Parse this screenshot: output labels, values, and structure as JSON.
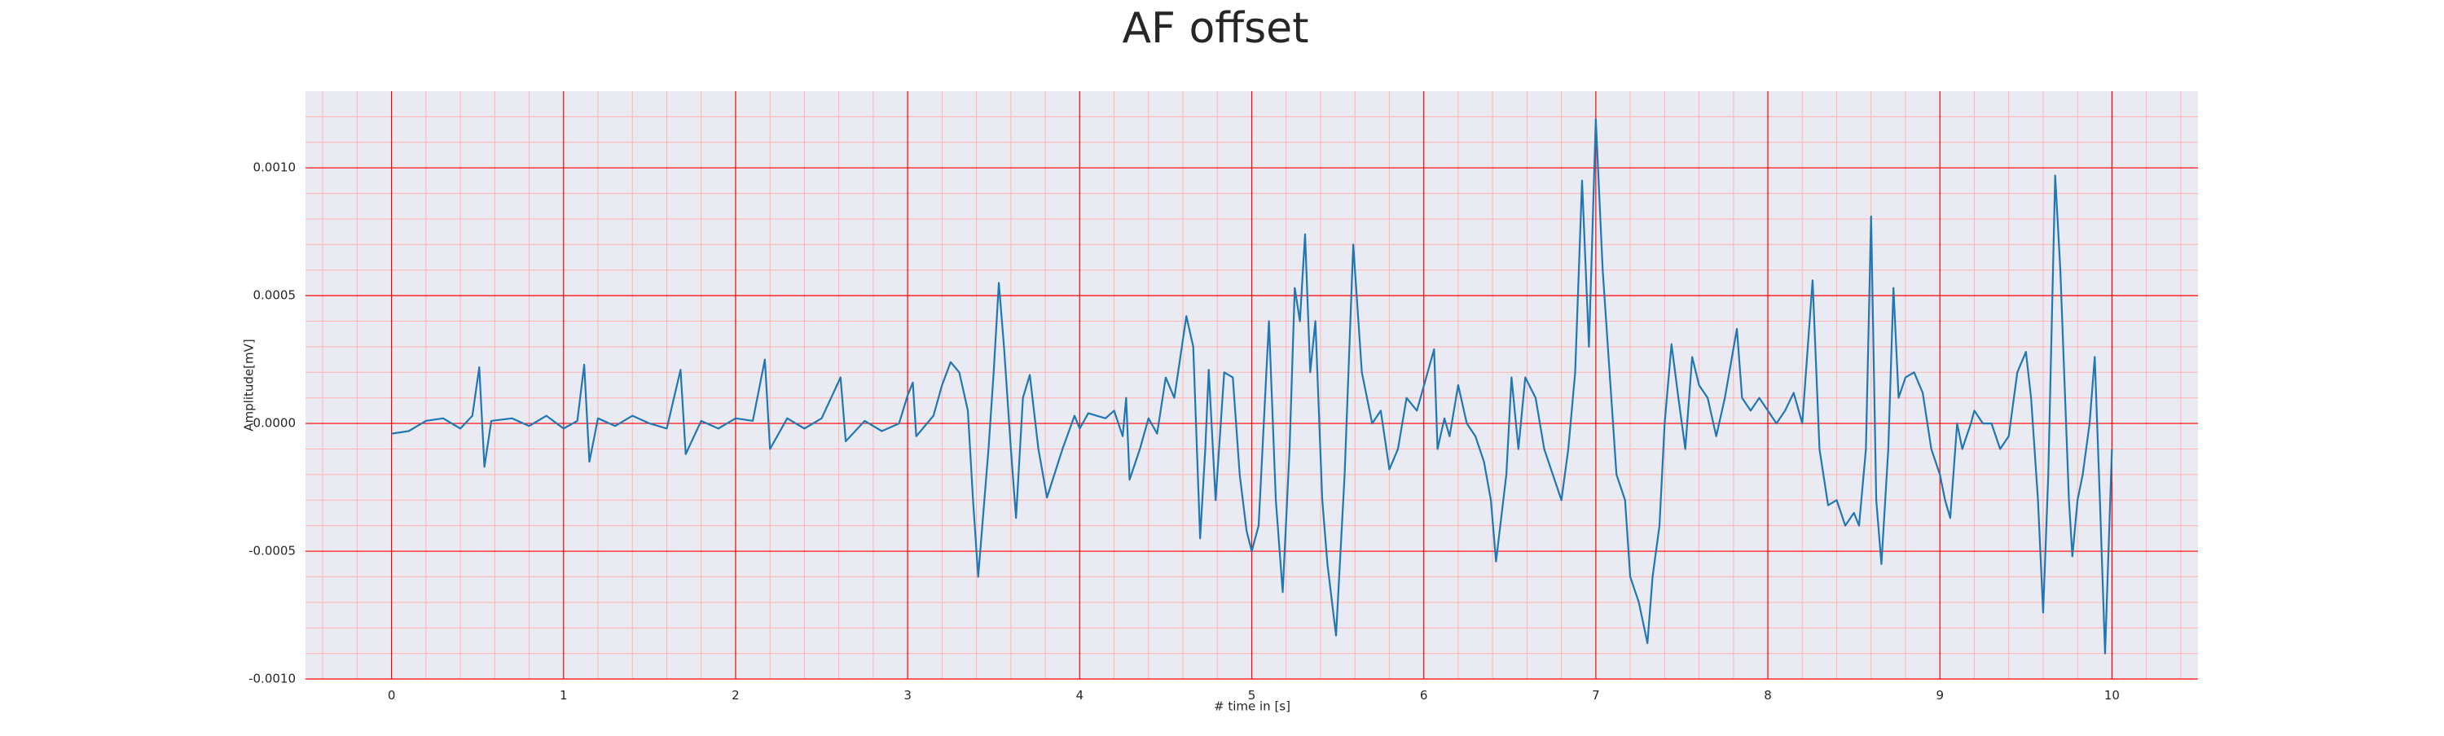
{
  "chart_data": {
    "type": "line",
    "title": "AF offset",
    "xlabel": "# time in [s]",
    "ylabel": "Amplitude[mV]",
    "x": [
      0,
      0.1,
      0.2,
      0.3,
      0.4,
      0.47,
      0.51,
      0.54,
      0.58,
      0.7,
      0.8,
      0.9,
      1.0,
      1.08,
      1.12,
      1.15,
      1.2,
      1.3,
      1.4,
      1.5,
      1.6,
      1.68,
      1.71,
      1.8,
      1.9,
      2.0,
      2.1,
      2.17,
      2.2,
      2.3,
      2.4,
      2.5,
      2.61,
      2.64,
      2.75,
      2.85,
      2.95,
      3.0,
      3.03,
      3.05,
      3.15,
      3.2,
      3.25,
      3.3,
      3.35,
      3.38,
      3.41,
      3.47,
      3.5,
      3.53,
      3.56,
      3.6,
      3.63,
      3.67,
      3.71,
      3.76,
      3.81,
      3.9,
      3.97,
      4.0,
      4.05,
      4.15,
      4.2,
      4.25,
      4.27,
      4.29,
      4.35,
      4.4,
      4.45,
      4.5,
      4.55,
      4.62,
      4.66,
      4.7,
      4.73,
      4.75,
      4.79,
      4.84,
      4.89,
      4.93,
      4.97,
      5.0,
      5.04,
      5.1,
      5.14,
      5.18,
      5.22,
      5.25,
      5.28,
      5.31,
      5.34,
      5.37,
      5.41,
      5.44,
      5.49,
      5.54,
      5.59,
      5.64,
      5.7,
      5.75,
      5.8,
      5.85,
      5.9,
      5.96,
      6.06,
      6.08,
      6.12,
      6.15,
      6.2,
      6.25,
      6.3,
      6.35,
      6.39,
      6.42,
      6.48,
      6.51,
      6.55,
      6.59,
      6.65,
      6.7,
      6.75,
      6.8,
      6.84,
      6.88,
      6.92,
      6.96,
      7.0,
      7.04,
      7.08,
      7.12,
      7.17,
      7.2,
      7.25,
      7.3,
      7.33,
      7.37,
      7.4,
      7.44,
      7.48,
      7.52,
      7.56,
      7.6,
      7.65,
      7.7,
      7.75,
      7.82,
      7.85,
      7.9,
      7.95,
      8.05,
      8.1,
      8.15,
      8.2,
      8.26,
      8.3,
      8.35,
      8.4,
      8.45,
      8.5,
      8.53,
      8.57,
      8.6,
      8.63,
      8.66,
      8.7,
      8.73,
      8.76,
      8.8,
      8.85,
      8.9,
      8.95,
      9.0,
      9.03,
      9.06,
      9.1,
      9.13,
      9.18,
      9.2,
      9.25,
      9.3,
      9.35,
      9.4,
      9.45,
      9.5,
      9.53,
      9.57,
      9.6,
      9.63,
      9.67,
      9.7,
      9.75,
      9.77,
      9.8,
      9.83,
      9.87,
      9.9,
      9.93,
      9.96,
      10.0
    ],
    "series": [
      {
        "name": "AF offset",
        "color": "#1f77b4",
        "values": [
          -4e-05,
          -3e-05,
          1e-05,
          2e-05,
          -2e-05,
          3e-05,
          0.00022,
          -0.00017,
          1e-05,
          2e-05,
          -1e-05,
          3e-05,
          -2e-05,
          1e-05,
          0.00023,
          -0.00015,
          2e-05,
          -1e-05,
          3e-05,
          0.0,
          -2e-05,
          0.00021,
          -0.00012,
          1e-05,
          -2e-05,
          2e-05,
          1e-05,
          0.00025,
          -0.0001,
          2e-05,
          -2e-05,
          2e-05,
          0.00018,
          -7e-05,
          1e-05,
          -3e-05,
          0.0,
          0.00011,
          0.00016,
          -5e-05,
          3e-05,
          0.00015,
          0.00024,
          0.0002,
          5e-05,
          -0.0003,
          -0.0006,
          -0.0001,
          0.0002,
          0.00055,
          0.0003,
          -0.0001,
          -0.00037,
          0.0001,
          0.00019,
          -0.0001,
          -0.00029,
          -0.0001,
          3e-05,
          -2e-05,
          4e-05,
          2e-05,
          5e-05,
          -5e-05,
          0.0001,
          -0.00022,
          -0.0001,
          2e-05,
          -4e-05,
          0.00018,
          0.0001,
          0.00042,
          0.0003,
          -0.00045,
          -0.0001,
          0.00021,
          -0.0003,
          0.0002,
          0.00018,
          -0.0002,
          -0.00042,
          -0.0005,
          -0.0004,
          0.0004,
          -0.0003,
          -0.00066,
          -0.0001,
          0.00053,
          0.0004,
          0.00074,
          0.0002,
          0.0004,
          -0.0003,
          -0.00055,
          -0.00083,
          -0.0002,
          0.0007,
          0.0002,
          0.0,
          5e-05,
          -0.00018,
          -0.0001,
          0.0001,
          5e-05,
          0.00029,
          -0.0001,
          2e-05,
          -5e-05,
          0.00015,
          0.0,
          -5e-05,
          -0.00015,
          -0.0003,
          -0.00054,
          -0.0002,
          0.00018,
          -0.0001,
          0.00018,
          0.0001,
          -0.0001,
          -0.0002,
          -0.0003,
          -0.0001,
          0.0002,
          0.00095,
          0.0003,
          0.00119,
          0.0006,
          0.0002,
          -0.0002,
          -0.0003,
          -0.0006,
          -0.0007,
          -0.00086,
          -0.0006,
          -0.0004,
          0.0,
          0.00031,
          0.0001,
          -0.0001,
          0.00026,
          0.00015,
          0.0001,
          -5e-05,
          0.0001,
          0.00037,
          0.0001,
          5e-05,
          0.0001,
          0.0,
          5e-05,
          0.00012,
          0.0,
          0.00056,
          -0.0001,
          -0.00032,
          -0.0003,
          -0.0004,
          -0.00035,
          -0.0004,
          -0.0001,
          0.00081,
          -0.0003,
          -0.00055,
          -0.0001,
          0.00053,
          0.0001,
          0.00018,
          0.0002,
          0.00012,
          -0.0001,
          -0.0002,
          -0.0003,
          -0.00037,
          0.0,
          -0.0001,
          0.0,
          5e-05,
          0.0,
          0.0,
          -0.0001,
          -5e-05,
          0.0002,
          0.00028,
          0.0001,
          -0.0003,
          -0.00074,
          -0.0002,
          0.00097,
          0.0006,
          -0.0003,
          -0.00052,
          -0.0003,
          -0.0002,
          0.0,
          0.00026,
          -0.0003,
          -0.0009,
          -0.0001
        ]
      }
    ],
    "xlim": [
      -0.5,
      10.5
    ],
    "ylim": [
      -0.001,
      0.0013
    ],
    "xticks": [
      0,
      1,
      2,
      3,
      4,
      5,
      6,
      7,
      8,
      9,
      10
    ],
    "yticks": [
      {
        "value": -0.001,
        "label": "-0.0010"
      },
      {
        "value": -0.0005,
        "label": "-0.0005"
      },
      {
        "value": 0,
        "label": "0.0000"
      },
      {
        "value": 0.0005,
        "label": "0.0005"
      },
      {
        "value": 0.001,
        "label": "0.0010"
      }
    ],
    "xminorticks": [
      -0.4,
      -0.2,
      0.2,
      0.4,
      0.6,
      0.8,
      1.2,
      1.4,
      1.6,
      1.8,
      2.2,
      2.4,
      2.6,
      2.8,
      3.2,
      3.4,
      3.6,
      3.8,
      4.2,
      4.4,
      4.6,
      4.8,
      5.2,
      5.4,
      5.6,
      5.8,
      6.2,
      6.4,
      6.6,
      6.8,
      7.2,
      7.4,
      7.6,
      7.8,
      8.2,
      8.4,
      8.6,
      8.8,
      9.2,
      9.4,
      9.6,
      9.8,
      10.2,
      10.4
    ],
    "yminorticks": [
      -0.0009,
      -0.0008,
      -0.0007,
      -0.0006,
      -0.0004,
      -0.0003,
      -0.0002,
      -0.0001,
      0.0001,
      0.0002,
      0.0003,
      0.0004,
      0.0006,
      0.0007,
      0.0008,
      0.0009,
      0.0011,
      0.0012
    ],
    "grid": true,
    "grid_color": "#ff0000",
    "minor_grid_color": "#ffb3b3",
    "background": "#eaeaf2"
  }
}
